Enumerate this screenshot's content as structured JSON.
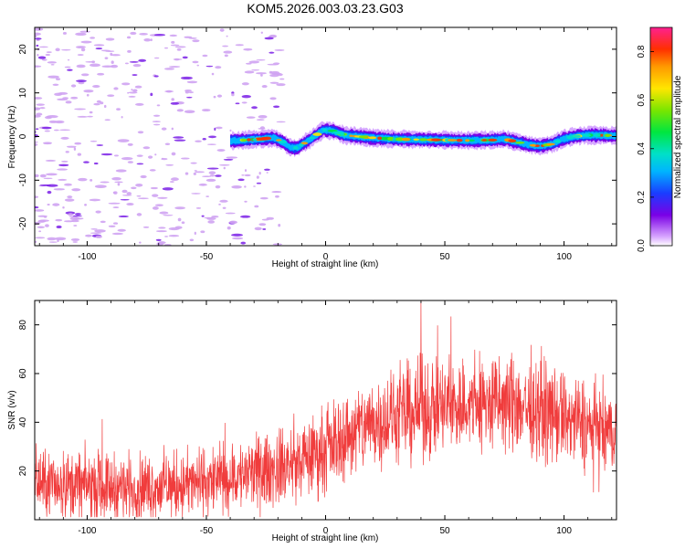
{
  "figure_title": "KOM5.2026.003.03.23.G03",
  "chart_data": [
    {
      "type": "heatmap",
      "title": "KOM5.2026.003.03.23.G03",
      "xlabel": "Height of straight line (km)",
      "ylabel": "Frequency (Hz)",
      "xlim": [
        -122,
        122
      ],
      "ylim": [
        -25,
        25
      ],
      "xticks": [
        -100,
        -50,
        0,
        50,
        100
      ],
      "yticks": [
        -20,
        -10,
        0,
        10,
        20
      ],
      "xtick_labels": [
        "-100",
        "-50",
        "0",
        "50",
        "100"
      ],
      "ytick_labels": [
        "-20",
        "-10",
        "0",
        "10",
        "20"
      ],
      "colorbar": {
        "label": "Normalized spectral amplitude",
        "range": [
          0,
          0.9
        ],
        "ticks": [
          0,
          0.2,
          0.4,
          0.6,
          0.8
        ],
        "tick_labels": [
          "0.0",
          "0.2",
          "0.4",
          "0.6",
          "0.8"
        ]
      },
      "ridge": {
        "description": "main frequency trace",
        "x": [
          -40,
          -34,
          -28,
          -22,
          -18,
          -15,
          -12,
          -8,
          -4,
          -1,
          3,
          8,
          12,
          20,
          30,
          40,
          50,
          60,
          70,
          75,
          80,
          85,
          90,
          95,
          100,
          105,
          110,
          115,
          122
        ],
        "y": [
          -1,
          -0.8,
          -0.6,
          -0.3,
          -1.2,
          -2.5,
          -2.6,
          -1.2,
          0.3,
          1.5,
          1.3,
          0.3,
          0.1,
          -0.3,
          -0.6,
          -0.7,
          -0.8,
          -0.9,
          -0.8,
          -0.6,
          -1.2,
          -1.9,
          -2.2,
          -1.7,
          -0.5,
          0.1,
          0.3,
          0.3,
          0.2
        ],
        "peak_amplitude": 0.9
      },
      "noise_region_x": [
        -122,
        -30
      ]
    },
    {
      "type": "line",
      "xlabel": "Height of straight line (km)",
      "ylabel": "SNR (v/v)",
      "xlim": [
        -122,
        122
      ],
      "ylim": [
        0,
        90
      ],
      "xticks": [
        -100,
        -50,
        0,
        50,
        100
      ],
      "yticks": [
        20,
        40,
        60,
        80
      ],
      "xtick_labels": [
        "-100",
        "-50",
        "0",
        "50",
        "100"
      ],
      "ytick_labels": [
        "20",
        "40",
        "60",
        "80"
      ],
      "color": "#f03c3c",
      "trend": {
        "x": [
          -122,
          -100,
          -80,
          -60,
          -40,
          -20,
          -10,
          0,
          10,
          20,
          30,
          40,
          50,
          60,
          70,
          80,
          90,
          100,
          110,
          122
        ],
        "y": [
          15,
          14,
          13,
          14,
          17,
          21,
          24,
          29,
          35,
          40,
          42,
          45,
          46,
          47,
          48,
          47,
          45,
          42,
          38,
          34
        ]
      },
      "noise_amplitude": 9,
      "peak": {
        "x": 40,
        "y": 90
      }
    }
  ]
}
